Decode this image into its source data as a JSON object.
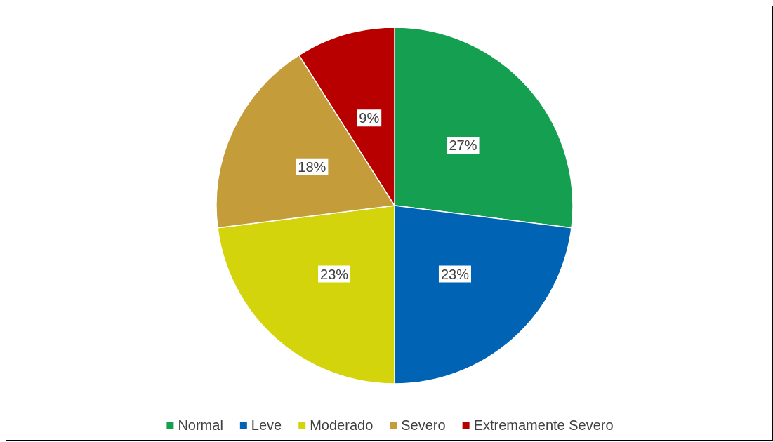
{
  "chart_data": {
    "type": "pie",
    "categories": [
      "Normal",
      "Leve",
      "Moderado",
      "Severo",
      "Extremamente Severo"
    ],
    "values": [
      27,
      23,
      23,
      18,
      9
    ],
    "colors": [
      "#14a050",
      "#0063b4",
      "#d4d40c",
      "#c49c3a",
      "#b80000"
    ],
    "value_labels": [
      "27%",
      "23%",
      "23%",
      "18%",
      "9%"
    ],
    "legend": "bottom"
  }
}
